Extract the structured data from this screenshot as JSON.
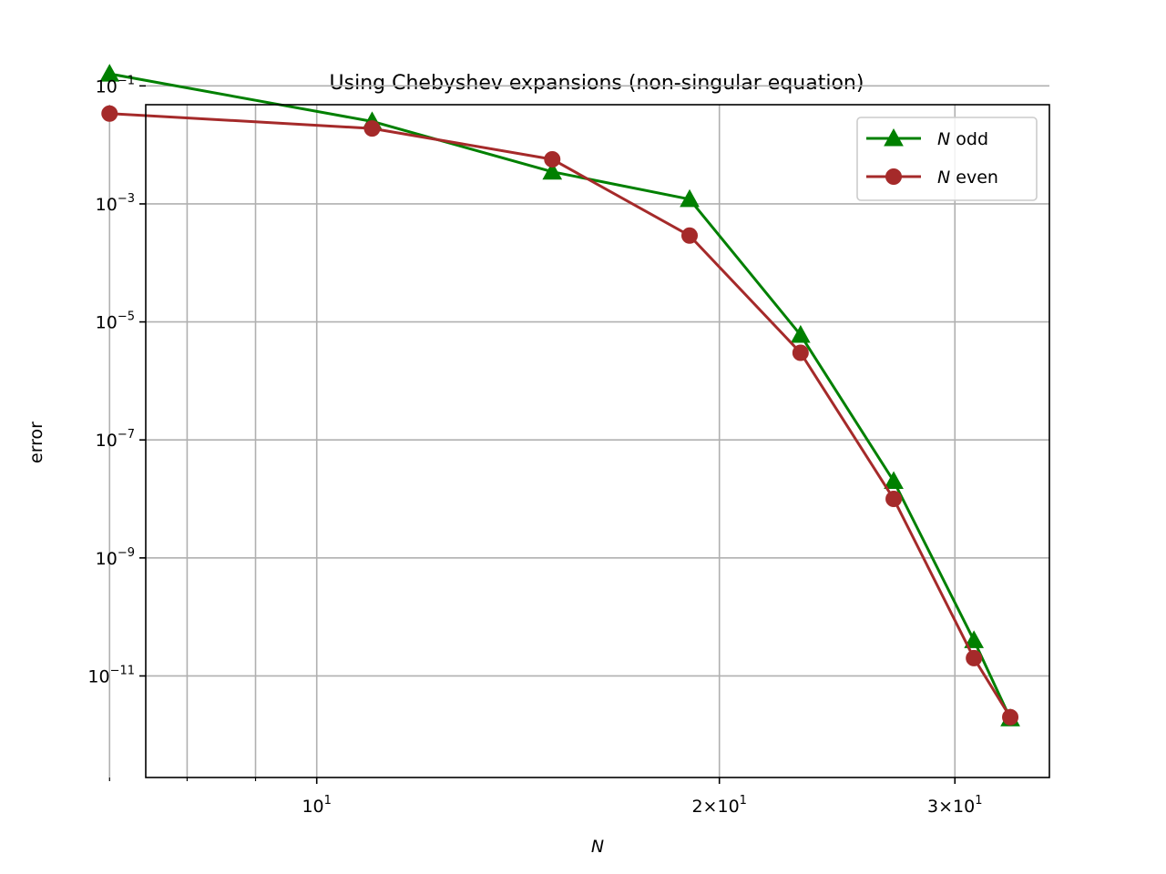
{
  "chart_data": {
    "type": "line",
    "title": "Using Chebyshev expansions (non-singular equation)",
    "xlabel": "N",
    "ylabel": "error",
    "xscale": "log",
    "yscale": "log",
    "xlim": [
      7.45,
      35.3
    ],
    "ylim": [
      1.9e-13,
      0.048
    ],
    "grid": true,
    "legend_position": "top-right",
    "x_ticks": [
      {
        "value": 10,
        "base": "10",
        "exp": "1"
      },
      {
        "value": 20,
        "base": "2×10",
        "exp": "1"
      },
      {
        "value": 30,
        "base": "3×10",
        "exp": "1"
      }
    ],
    "x_minor_grid": [
      8,
      9
    ],
    "y_ticks": [
      {
        "value": 0.1,
        "base": "10",
        "exp": "−1"
      },
      {
        "value": 0.001,
        "base": "10",
        "exp": "−3"
      },
      {
        "value": 1e-05,
        "base": "10",
        "exp": "−5"
      },
      {
        "value": 1e-07,
        "base": "10",
        "exp": "−7"
      },
      {
        "value": 1e-09,
        "base": "10",
        "exp": "−9"
      },
      {
        "value": 1e-11,
        "base": "10",
        "exp": "−11"
      }
    ],
    "series": [
      {
        "name_var": "N",
        "name_rest": " odd",
        "color": "#008000",
        "marker": "triangle",
        "x": [
          7,
          11,
          15,
          19,
          23,
          27,
          31,
          33
        ],
        "y": [
          0.16,
          0.025,
          0.0035,
          0.0012,
          6e-06,
          2e-08,
          4e-11,
          1.9e-12
        ]
      },
      {
        "name_var": "N",
        "name_rest": " even",
        "color": "#a52a2a",
        "marker": "circle",
        "x": [
          7,
          11,
          15,
          19,
          23,
          27,
          31,
          33
        ],
        "y": [
          0.034,
          0.019,
          0.0057,
          0.00029,
          3e-06,
          1e-08,
          2e-11,
          2e-12
        ]
      }
    ]
  }
}
